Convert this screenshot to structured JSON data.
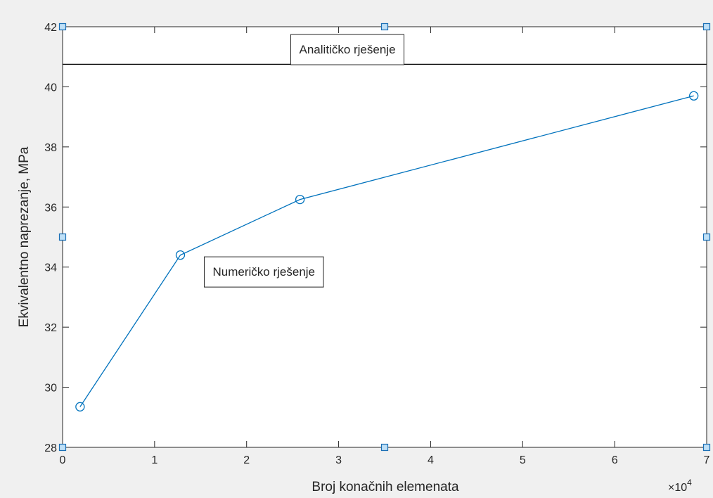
{
  "chart_data": {
    "type": "line",
    "xlabel": "Broj konačnih elemenata",
    "ylabel": "Ekvivalentno naprezanje, MPa",
    "xlim": [
      0,
      70000
    ],
    "ylim": [
      28,
      42
    ],
    "x_exponent": {
      "prefix": "×10",
      "power": "4"
    },
    "x_ticks": [
      0,
      10000,
      20000,
      30000,
      40000,
      50000,
      60000,
      70000
    ],
    "x_tick_labels": [
      "0",
      "1",
      "2",
      "3",
      "4",
      "5",
      "6",
      "7"
    ],
    "y_ticks": [
      28,
      30,
      32,
      34,
      36,
      38,
      40,
      42
    ],
    "y_tick_labels": [
      "28",
      "30",
      "32",
      "34",
      "36",
      "38",
      "40",
      "42"
    ],
    "grid": false,
    "series": [
      {
        "x": [
          1900,
          12800,
          25800,
          68600
        ],
        "y": [
          29.35,
          34.4,
          36.25,
          39.7
        ],
        "color": "#0072bd",
        "marker": "circle"
      }
    ],
    "reference_line": {
      "y": 40.75,
      "color": "#000000"
    },
    "annotations": [
      {
        "text": "Analitičko rješenje",
        "x": 24800,
        "y": 41.25
      },
      {
        "text": "Numeričko rješenje",
        "x": 15400,
        "y": 33.85
      }
    ]
  }
}
